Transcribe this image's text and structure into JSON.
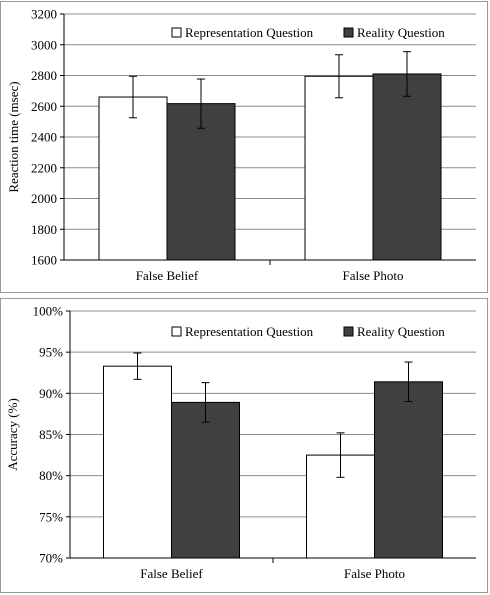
{
  "chart_data": [
    {
      "type": "bar",
      "categories": [
        "False Belief",
        "False Photo"
      ],
      "series": [
        {
          "name": "Representation Question",
          "values": [
            2660,
            2795
          ],
          "errors": [
            135,
            140
          ]
        },
        {
          "name": "Reality Question",
          "values": [
            2617,
            2810
          ],
          "errors": [
            160,
            145
          ]
        }
      ],
      "ylabel": "Reaction time (msec)",
      "ylim": [
        1600,
        3200
      ],
      "yticks": [
        "1600",
        "1800",
        "2000",
        "2200",
        "2400",
        "2600",
        "2800",
        "3000",
        "3200"
      ],
      "grid": true,
      "legend": "top",
      "colors": {
        "Representation Question": "#ffffff",
        "Reality Question": "#404040"
      }
    },
    {
      "type": "bar",
      "categories": [
        "False Belief",
        "False Photo"
      ],
      "series": [
        {
          "name": "Representation Question",
          "values": [
            93.3,
            82.5
          ],
          "errors": [
            1.6,
            2.7
          ]
        },
        {
          "name": "Reality Question",
          "values": [
            88.9,
            91.4
          ],
          "errors": [
            2.4,
            2.4
          ]
        }
      ],
      "ylabel": "Accuracy (%)",
      "ylim": [
        70,
        100
      ],
      "yticks": [
        "70%",
        "75%",
        "80%",
        "85%",
        "90%",
        "95%",
        "100%"
      ],
      "grid": true,
      "legend": "top",
      "colors": {
        "Representation Question": "#ffffff",
        "Reality Question": "#404040"
      }
    }
  ]
}
